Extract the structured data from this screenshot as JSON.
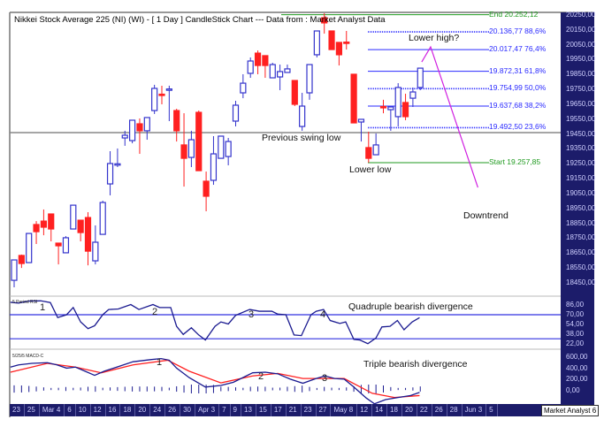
{
  "header": {
    "title": "Nikkei Stock Average 225 (NI) (WI) -  [ 1 Day ] CandleStick Chart --- Data from : Market Analyst Data"
  },
  "brand": "Market Analyst 6",
  "colors": {
    "up": "#3333cc",
    "down": "#ff2020",
    "fib": "#2a2aff",
    "green": "#1f9a1f",
    "magenta": "#d020e0",
    "axis_bg": "#1c1c6a"
  },
  "chart_data": [
    {
      "type": "candlestick",
      "title": "Nikkei Stock Average 225 (NI) (WI) - [ 1 Day ] CandleStick Chart",
      "y_ticks": [
        20250,
        20150,
        20050,
        19950,
        19850,
        19750,
        19650,
        19550,
        19450,
        19350,
        19250,
        19150,
        19050,
        18950,
        18850,
        18750,
        18650,
        18550,
        18450
      ],
      "y_tick_labels": [
        "20250,00",
        "20150,00",
        "20050,00",
        "19950,00",
        "19850,00",
        "19750,00",
        "19650,00",
        "19550,00",
        "19450,00",
        "19350,00",
        "19250,00",
        "19150,00",
        "19050,00",
        "18950,00",
        "18850,00",
        "18750,00",
        "18650,00",
        "18550,00",
        "18450,00"
      ],
      "ylim": [
        18400,
        20270
      ],
      "x_labels": [
        "23",
        "25",
        "Mar 4",
        "6",
        "10",
        "12",
        "16",
        "18",
        "20",
        "24",
        "26",
        "30",
        "Apr 3",
        "7",
        "9",
        "13",
        "15",
        "17",
        "21",
        "23",
        "27",
        "May 8",
        "12",
        "14",
        "18",
        "20",
        "22",
        "26",
        "28",
        "Jun 3",
        "5"
      ],
      "ohlc": [
        [
          18467,
          18604,
          18420,
          18604
        ],
        [
          18634,
          18640,
          18550,
          18580
        ],
        [
          18586,
          18782,
          18586,
          18782
        ],
        [
          18842,
          18865,
          18711,
          18794
        ],
        [
          18865,
          18943,
          18770,
          18824
        ],
        [
          18913,
          18913,
          18729,
          18812
        ],
        [
          18717,
          18717,
          18574,
          18699
        ],
        [
          18652,
          18764,
          18652,
          18753
        ],
        [
          18812,
          18972,
          18812,
          18972
        ],
        [
          18871,
          18871,
          18729,
          18788
        ],
        [
          18889,
          18925,
          18568,
          18663
        ],
        [
          18598,
          18836,
          18574,
          18723
        ],
        [
          18776,
          19002,
          18776,
          18990
        ],
        [
          19115,
          19335,
          19038,
          19252
        ],
        [
          19246,
          19353,
          19228,
          19250
        ],
        [
          19424,
          19472,
          19371,
          19442
        ],
        [
          19406,
          19543,
          19388,
          19543
        ],
        [
          19519,
          19555,
          19317,
          19472
        ],
        [
          19472,
          19561,
          19412,
          19561
        ],
        [
          19608,
          19781,
          19585,
          19757
        ],
        [
          19718,
          19775,
          19650,
          19712
        ],
        [
          19750,
          19775,
          19537,
          19753
        ],
        [
          19608,
          19620,
          19400,
          19472
        ],
        [
          19377,
          19590,
          19097,
          19287
        ],
        [
          19293,
          19472,
          19228,
          19412
        ],
        [
          19596,
          19608,
          19204,
          19204
        ],
        [
          19133,
          19198,
          18931,
          19032
        ],
        [
          19139,
          19436,
          19109,
          19317
        ],
        [
          19287,
          19436,
          19287,
          19436
        ],
        [
          19299,
          19424,
          19240,
          19400
        ],
        [
          19537,
          19674,
          19501,
          19644
        ],
        [
          19727,
          19852,
          19691,
          19792
        ],
        [
          19858,
          19965,
          19828,
          19941
        ],
        [
          19994,
          20012,
          19852,
          19911
        ],
        [
          19977,
          19977,
          19828,
          19911
        ],
        [
          19828,
          19929,
          19828,
          19917
        ],
        [
          19834,
          19917,
          19745,
          19870
        ],
        [
          19864,
          19917,
          19864,
          19888
        ],
        [
          19810,
          19810,
          19638,
          19650
        ],
        [
          19501,
          19727,
          19472,
          19638
        ],
        [
          19727,
          19917,
          19680,
          19917
        ],
        [
          19983,
          20143,
          19965,
          20143
        ],
        [
          20232,
          20262,
          20125,
          20197
        ],
        [
          20143,
          20143,
          20018,
          20018
        ],
        [
          20066,
          20066,
          19911,
          19983
        ],
        [
          20068,
          20143,
          20018,
          20062
        ],
        [
          19852,
          19852,
          19525,
          19525
        ],
        [
          19531,
          19549,
          19400,
          19549
        ],
        [
          19359,
          19466,
          19258,
          19287
        ],
        [
          19311,
          19454,
          19311,
          19377
        ],
        [
          19635,
          19680,
          19590,
          19630
        ],
        [
          19614,
          19632,
          19472,
          19632
        ],
        [
          19567,
          19792,
          19501,
          19763
        ],
        [
          19662,
          19721,
          19543,
          19567
        ],
        [
          19691,
          19763,
          19632,
          19733
        ],
        [
          19763,
          19893,
          19745,
          19893
        ]
      ],
      "swing_low_level": 19460,
      "fib": {
        "start": {
          "value": 19257.85,
          "label": "Start 19.257,85"
        },
        "end": {
          "value": 20252.12,
          "label": "End 20.252,12"
        },
        "levels": [
          {
            "value": 20136.77,
            "label": "20.136,77 88,6%",
            "dotted": true
          },
          {
            "value": 20017.47,
            "label": "20.017,47 76,4%",
            "dotted": false
          },
          {
            "value": 19872.31,
            "label": "19.872,31 61,8%",
            "dotted": false
          },
          {
            "value": 19754.99,
            "label": "19.754,99 50,0%",
            "dotted": true
          },
          {
            "value": 19637.68,
            "label": "19.637,68 38,2%",
            "dotted": false
          },
          {
            "value": 19492.5,
            "label": "19.492,50 23,6%",
            "dotted": true
          }
        ]
      },
      "downtrend_path": [
        [
          55.2,
          19935
        ],
        [
          56.4,
          20036
        ],
        [
          62.8,
          19091
        ]
      ],
      "annotations": {
        "swing_low": "Previous swing low",
        "lower_low": "Lower low",
        "lower_high": "Lower high?",
        "downtrend": "Downtrend"
      }
    },
    {
      "type": "line",
      "title": "5 Period RSI",
      "y_ticks": [
        86,
        70,
        54,
        38,
        22
      ],
      "y_tick_labels": [
        "86,00",
        "70,00",
        "54,00",
        "38,00",
        "22,00"
      ],
      "levels": [
        70,
        30
      ],
      "points": [
        [
          -0.5,
          90.7
        ],
        [
          0.6,
          89.3
        ],
        [
          1.9,
          92.7
        ],
        [
          3.6,
          93.1
        ],
        [
          4.9,
          90.2
        ],
        [
          5.9,
          65.2
        ],
        [
          7.1,
          70
        ],
        [
          8,
          82
        ],
        [
          9,
          58
        ],
        [
          10,
          46.9
        ],
        [
          10.9,
          51.7
        ],
        [
          12,
          70
        ],
        [
          12.8,
          78.7
        ],
        [
          14.1,
          79.6
        ],
        [
          15.8,
          86.9
        ],
        [
          16.9,
          78.7
        ],
        [
          18.8,
          86.9
        ],
        [
          19.7,
          82
        ],
        [
          21.2,
          82
        ],
        [
          22,
          50.7
        ],
        [
          22.9,
          37.2
        ],
        [
          24,
          48.3
        ],
        [
          25,
          36.3
        ],
        [
          25.9,
          28
        ],
        [
          27.2,
          50.7
        ],
        [
          28,
          58
        ],
        [
          29,
          54.6
        ],
        [
          30,
          69
        ],
        [
          31.9,
          78.7
        ],
        [
          33.2,
          75.8
        ],
        [
          34.9,
          75.8
        ],
        [
          35.7,
          71
        ],
        [
          36.8,
          70
        ],
        [
          37.9,
          36.3
        ],
        [
          38.9,
          35.3
        ],
        [
          40.2,
          70
        ],
        [
          40.9,
          75.8
        ],
        [
          41.9,
          78.7
        ],
        [
          42.8,
          60.4
        ],
        [
          44.1,
          55.5
        ],
        [
          44.9,
          58
        ],
        [
          46,
          29
        ],
        [
          46.8,
          28
        ],
        [
          47.9,
          21.8
        ],
        [
          49,
          31.4
        ],
        [
          49.8,
          49.7
        ],
        [
          50.9,
          50.7
        ],
        [
          51.9,
          60.4
        ],
        [
          52.8,
          45
        ],
        [
          53.9,
          58
        ],
        [
          54.9,
          65.2
        ]
      ],
      "markers": [
        "1",
        "2",
        "3",
        "4"
      ],
      "annotation": "Quadruple bearish divergence"
    },
    {
      "type": "line",
      "title": "5/25/5 MACD-C",
      "y_ticks": [
        600,
        400,
        200,
        0
      ],
      "y_tick_labels": [
        "600,00",
        "400,00",
        "200,00",
        "0,00"
      ],
      "series": [
        {
          "name": "MACD",
          "points": [
            [
              -0.5,
              420
            ],
            [
              0.6,
              460
            ],
            [
              2.4,
              488
            ],
            [
              4.5,
              500
            ],
            [
              5.8,
              460
            ],
            [
              7.1,
              402
            ],
            [
              8.3,
              420
            ],
            [
              9.6,
              347
            ],
            [
              10.9,
              272
            ],
            [
              12.2,
              347
            ],
            [
              13.9,
              420
            ],
            [
              16.1,
              517
            ],
            [
              18.6,
              557
            ],
            [
              19.9,
              574
            ],
            [
              21,
              545
            ],
            [
              22,
              402
            ],
            [
              23.7,
              232
            ],
            [
              25.9,
              62
            ],
            [
              28,
              91
            ],
            [
              29.7,
              148
            ],
            [
              32.3,
              318
            ],
            [
              34,
              329
            ],
            [
              35.7,
              300
            ],
            [
              37.4,
              204
            ],
            [
              39.1,
              130
            ],
            [
              40.9,
              216
            ],
            [
              42.1,
              261
            ],
            [
              43.4,
              216
            ],
            [
              44.7,
              204
            ],
            [
              46,
              62
            ],
            [
              47.7,
              -137
            ],
            [
              48.8,
              -239
            ],
            [
              50.3,
              -164
            ],
            [
              52,
              -126
            ],
            [
              53.7,
              -91
            ],
            [
              54.9,
              -35
            ]
          ]
        },
        {
          "name": "Signal",
          "points": [
            [
              -0.5,
              329
            ],
            [
              4.5,
              488
            ],
            [
              8.3,
              420
            ],
            [
              11.8,
              318
            ],
            [
              16.1,
              460
            ],
            [
              20.8,
              545
            ],
            [
              23.7,
              347
            ],
            [
              28,
              137
            ],
            [
              32.3,
              261
            ],
            [
              35.7,
              307
            ],
            [
              39.1,
              216
            ],
            [
              44.7,
              216
            ],
            [
              48.5,
              -51
            ],
            [
              51.5,
              -126
            ],
            [
              54.9,
              -91
            ]
          ]
        }
      ],
      "markers": [
        "1",
        "2",
        "3"
      ],
      "annotation": "Triple bearish divergence"
    }
  ]
}
